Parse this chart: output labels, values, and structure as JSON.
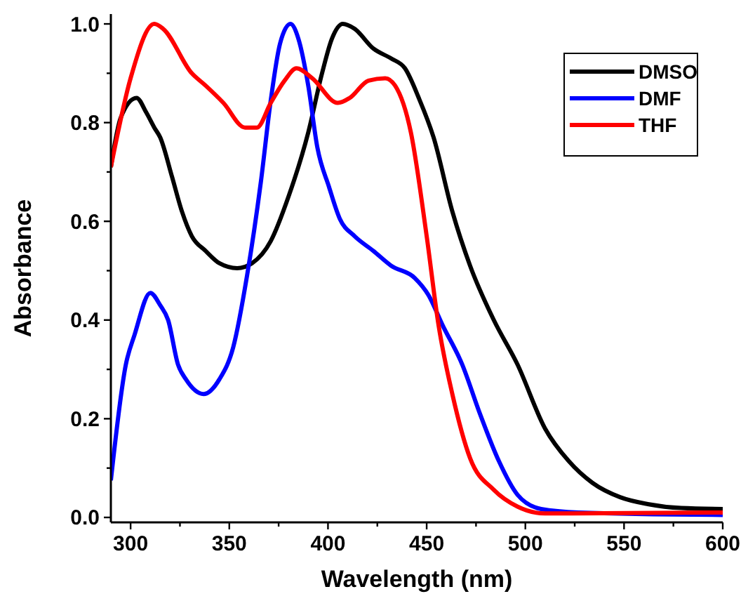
{
  "chart_data": {
    "type": "line",
    "xlabel": "Wavelength (nm)",
    "ylabel": "Absorbance",
    "xlim": [
      290,
      600
    ],
    "ylim": [
      -0.01,
      1.02
    ],
    "xticks": [
      300,
      {
        "value": 325,
        "label": null
      },
      350,
      {
        "value": 375,
        "label": null
      },
      400,
      {
        "value": 425,
        "label": null
      },
      450,
      {
        "value": 475,
        "label": null
      },
      500,
      {
        "value": 525,
        "label": null
      },
      550,
      {
        "value": 575,
        "label": null
      },
      600
    ],
    "yticks": [
      {
        "value": 0,
        "label": "0.0"
      },
      {
        "value": 0.1,
        "label": null
      },
      {
        "value": 0.2,
        "label": "0.2"
      },
      {
        "value": 0.3,
        "label": null
      },
      {
        "value": 0.4,
        "label": "0.4"
      },
      {
        "value": 0.5,
        "label": null
      },
      {
        "value": 0.6,
        "label": "0.6"
      },
      {
        "value": 0.7,
        "label": null
      },
      {
        "value": 0.8,
        "label": "0.8"
      },
      {
        "value": 0.9,
        "label": null
      },
      {
        "value": 1.0,
        "label": "1.0"
      }
    ],
    "grid": false,
    "legend": "top right",
    "line_style": "solid",
    "series": [
      {
        "name": "DMSO",
        "color": "#000000",
        "x": [
          290,
          295,
          303,
          308,
          312,
          315,
          321,
          326,
          331,
          338,
          345,
          354,
          361.5,
          371,
          380,
          390,
          397,
          402,
          407.5,
          413.5,
          423,
          432,
          439,
          446,
          453.5,
          463,
          472,
          484,
          496,
          510,
          522,
          534,
          548,
          562,
          579,
          600
        ],
        "values": [
          0.71,
          0.81,
          0.85,
          0.82,
          0.79,
          0.77,
          0.69,
          0.62,
          0.57,
          0.54,
          0.515,
          0.505,
          0.515,
          0.56,
          0.65,
          0.78,
          0.9,
          0.97,
          1.0,
          0.99,
          0.95,
          0.93,
          0.91,
          0.85,
          0.77,
          0.62,
          0.51,
          0.4,
          0.31,
          0.18,
          0.114,
          0.07,
          0.041,
          0.027,
          0.019,
          0.017
        ]
      },
      {
        "name": "DMF",
        "color": "#0000ff",
        "x": [
          290,
          297.6,
          302,
          310,
          315,
          319,
          324,
          328,
          337,
          345,
          352,
          359,
          366,
          371,
          375.7,
          381,
          385,
          390,
          394.6,
          400.5,
          406,
          413.5,
          423,
          432,
          444,
          451,
          458,
          468,
          477,
          486.6,
          496,
          508,
          527,
          600
        ],
        "values": [
          0.075,
          0.31,
          0.37,
          0.455,
          0.43,
          0.4,
          0.31,
          0.28,
          0.25,
          0.28,
          0.345,
          0.49,
          0.68,
          0.845,
          0.96,
          1.0,
          0.97,
          0.875,
          0.75,
          0.67,
          0.605,
          0.57,
          0.54,
          0.51,
          0.485,
          0.45,
          0.39,
          0.31,
          0.21,
          0.114,
          0.046,
          0.017,
          0.01,
          0.005
        ]
      },
      {
        "name": "THF",
        "color": "#ff0000",
        "x": [
          290,
          300,
          312,
          316.5,
          331,
          338,
          347,
          358,
          364,
          371,
          378,
          384,
          392,
          405,
          411,
          420.5,
          429,
          434,
          442,
          450,
          456,
          463,
          472,
          484,
          496,
          510,
          600
        ],
        "values": [
          0.71,
          0.89,
          1.0,
          0.99,
          0.9,
          0.875,
          0.84,
          0.79,
          0.79,
          0.84,
          0.885,
          0.91,
          0.89,
          0.84,
          0.85,
          0.885,
          0.89,
          0.875,
          0.78,
          0.57,
          0.39,
          0.25,
          0.12,
          0.056,
          0.022,
          0.008,
          0.01
        ]
      }
    ]
  }
}
